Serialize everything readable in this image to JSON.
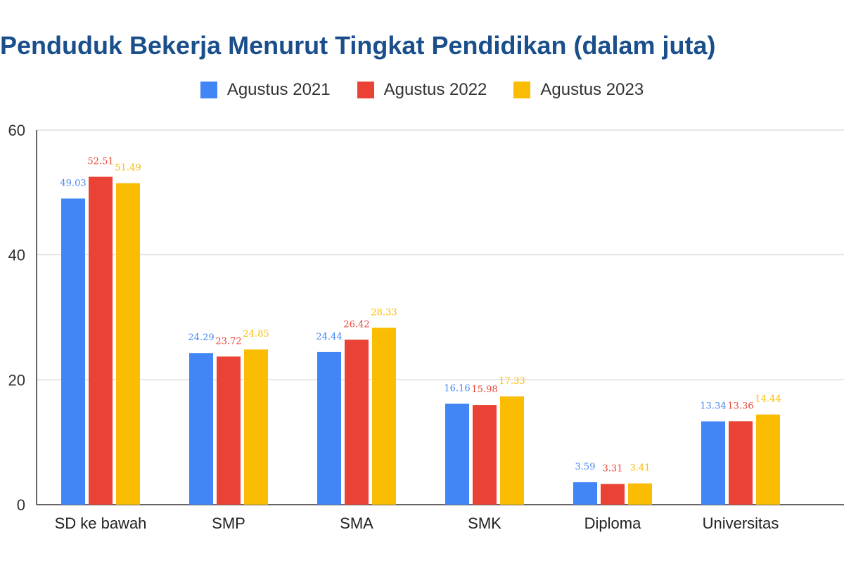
{
  "chart_data": {
    "type": "bar",
    "title": "Penduduk Bekerja Menurut Tingkat Pendidikan (dalam juta)",
    "xlabel": "",
    "ylabel": "",
    "ylim": [
      0,
      60
    ],
    "yticks": [
      "0",
      "20",
      "40",
      "60"
    ],
    "grid": true,
    "legend": "top-center",
    "categories": [
      "SD ke bawah",
      "SMP",
      "SMA",
      "SMK",
      "Diploma",
      "Universitas"
    ],
    "series": [
      {
        "name": "Agustus 2021",
        "color": "#4285f4",
        "values": [
          49.03,
          24.29,
          24.44,
          16.16,
          3.59,
          13.34
        ],
        "labels": [
          "49.03",
          "24.29",
          "24.44",
          "16.16",
          "3.59",
          "13.34"
        ]
      },
      {
        "name": "Agustus 2022",
        "color": "#ea4335",
        "values": [
          52.51,
          23.72,
          26.42,
          15.98,
          3.31,
          13.36
        ],
        "labels": [
          "52.51",
          "23.72",
          "26.42",
          "15.98",
          "3.31",
          "13.36"
        ]
      },
      {
        "name": "Agustus 2023",
        "color": "#fbbc04",
        "values": [
          51.49,
          24.85,
          28.33,
          17.33,
          3.41,
          14.44
        ],
        "labels": [
          "51.49",
          "24.85",
          "28.33",
          "17.33",
          "3.41",
          "14.44"
        ]
      }
    ]
  }
}
